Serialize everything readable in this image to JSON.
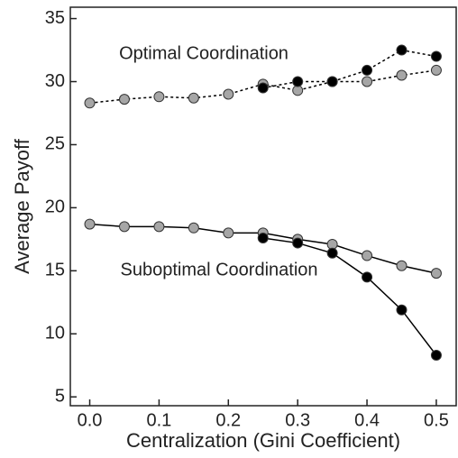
{
  "chart_data": {
    "type": "line",
    "xlabel": "Centralization (Gini Coefficient)",
    "ylabel": "Average Payoff",
    "annotations": [
      "Optimal Coordination",
      "Suboptimal Coordination"
    ],
    "xlim": [
      -0.028,
      0.53
    ],
    "ylim": [
      4.3,
      35.9
    ],
    "xticks": [
      {
        "value": 0,
        "label": "0.0"
      },
      0.1,
      0.2,
      0.3,
      0.4,
      0.5
    ],
    "yticks": [
      5,
      10,
      15,
      20,
      25,
      30,
      35
    ],
    "series": [
      {
        "color": "#a6a6a6",
        "linestyle": "dashed",
        "x": [
          0,
          0.05,
          0.1,
          0.15,
          0.2,
          0.25,
          0.3,
          0.35,
          0.4,
          0.45,
          0.5
        ],
        "values": [
          28.3,
          28.6,
          28.8,
          28.7,
          29.0,
          29.8,
          29.3,
          30.0,
          30.0,
          30.5,
          30.9
        ]
      },
      {
        "color": "#000000",
        "linestyle": "dashed",
        "x": [
          0.25,
          0.3,
          0.35,
          0.4,
          0.45,
          0.5
        ],
        "values": [
          29.5,
          30.0,
          30.0,
          30.9,
          32.5,
          32.0
        ]
      },
      {
        "color": "#a6a6a6",
        "linestyle": "solid",
        "x": [
          0,
          0.05,
          0.1,
          0.15,
          0.2,
          0.25,
          0.3,
          0.35,
          0.4,
          0.45,
          0.5
        ],
        "values": [
          18.7,
          18.5,
          18.5,
          18.4,
          18.0,
          18.0,
          17.5,
          17.1,
          16.2,
          15.4,
          14.8
        ]
      },
      {
        "color": "#000000",
        "linestyle": "solid",
        "x": [
          0.25,
          0.3,
          0.35,
          0.4,
          0.45,
          0.5
        ],
        "values": [
          17.6,
          17.2,
          16.4,
          14.5,
          11.9,
          8.3
        ]
      }
    ]
  }
}
